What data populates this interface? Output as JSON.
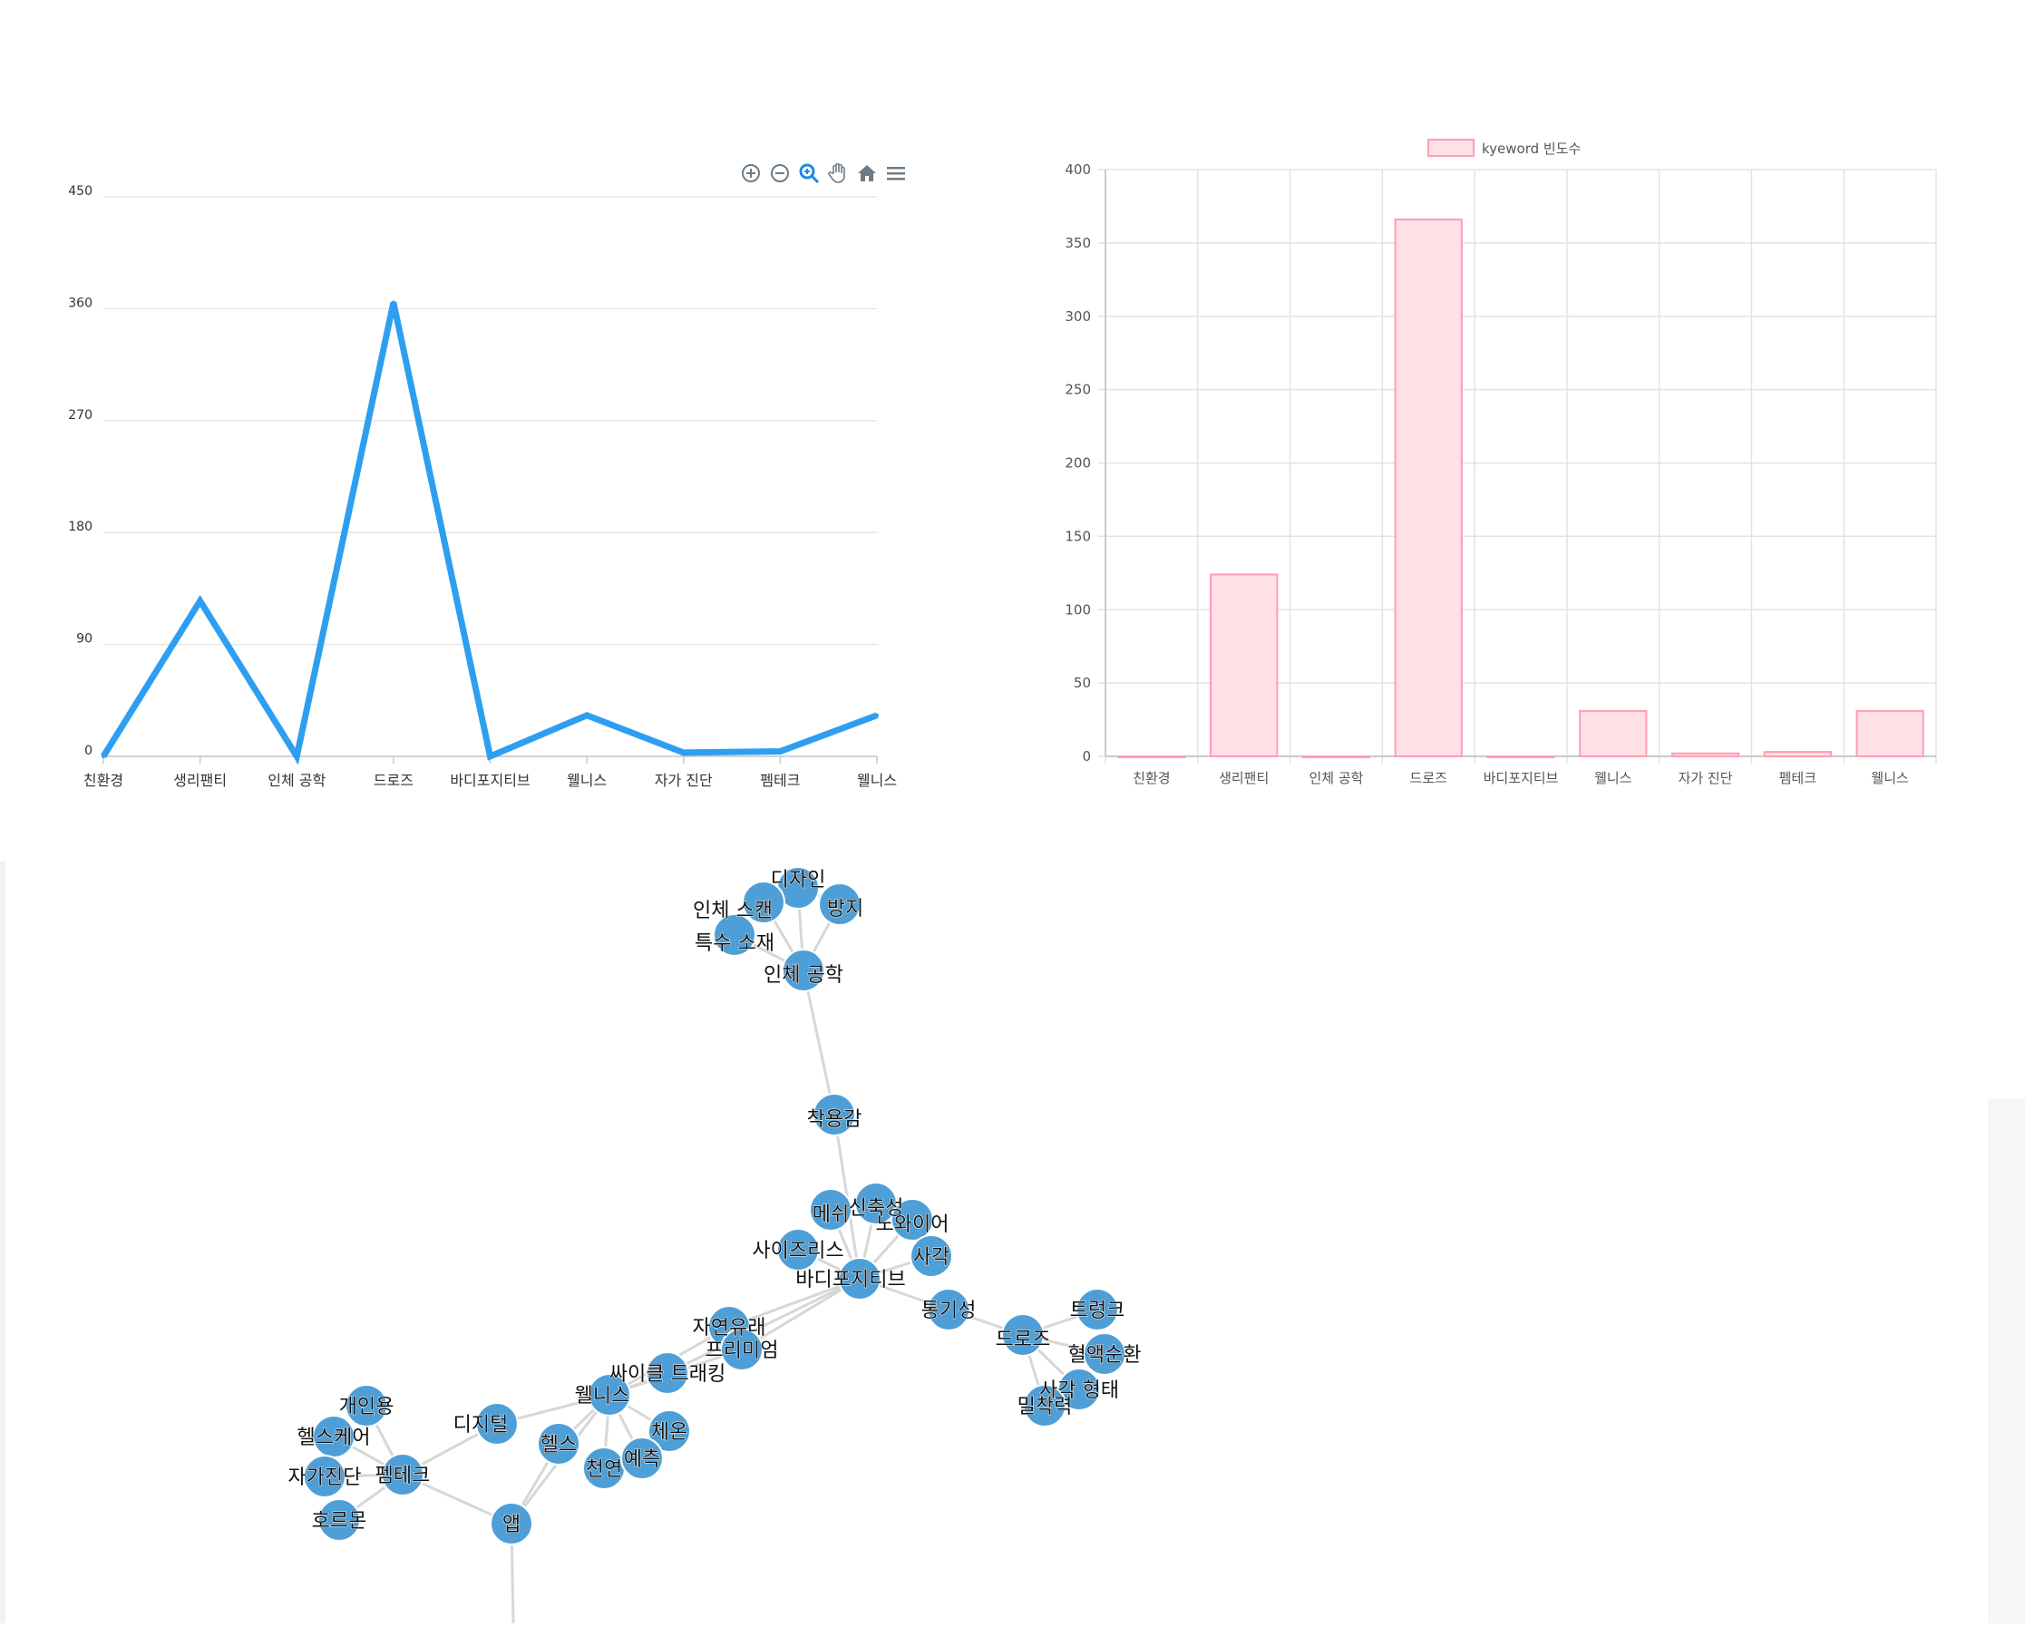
{
  "chart_data": [
    {
      "type": "line",
      "categories": [
        "친환경",
        "생리팬티",
        "인체 공학",
        "드로즈",
        "바디포지티브",
        "웰니스",
        "자가 진단",
        "펨테크",
        "웰니스"
      ],
      "series": [
        {
          "values": [
            0,
            125,
            0,
            365,
            0,
            33,
            3,
            4,
            33
          ]
        }
      ],
      "ylim": [
        0,
        450
      ],
      "yticks": [
        "0",
        "90",
        "180",
        "270",
        "360",
        "450"
      ],
      "grid": true,
      "color": "#2e9ff0",
      "toolbar": [
        "zoom-in-icon",
        "zoom-out-icon",
        "zoom-select-icon",
        "pan-hand-icon",
        "reset-home-icon",
        "menu-icon"
      ]
    },
    {
      "type": "bar",
      "categories": [
        "친환경",
        "생리팬티",
        "인체 공학",
        "드로즈",
        "바디포지티브",
        "웰니스",
        "자가 진단",
        "펨테크",
        "웰니스"
      ],
      "series": [
        {
          "name": "kyeword 빈도수",
          "values": [
            0,
            124,
            0,
            366,
            0,
            31,
            2,
            3,
            31
          ]
        }
      ],
      "ylim": [
        0,
        400
      ],
      "yticks": [
        "0",
        "50",
        "100",
        "150",
        "200",
        "250",
        "300",
        "350",
        "400"
      ],
      "grid": true,
      "legend": "top-center",
      "fill": "#ffe0e6",
      "stroke": "#ff9db3"
    }
  ],
  "network": {
    "node_color": "#4e9fd7",
    "edge_color": "#d7d7d7",
    "nodes": [
      {
        "id": "디자인",
        "label": "디자인"
      },
      {
        "id": "인체스캔",
        "label": "인체 스캔"
      },
      {
        "id": "방지",
        "label": "방지"
      },
      {
        "id": "특수소재",
        "label": "특수 소재"
      },
      {
        "id": "인체공학",
        "label": "인체 공학"
      },
      {
        "id": "착용감",
        "label": "착용감"
      },
      {
        "id": "메쉬",
        "label": "메쉬"
      },
      {
        "id": "신축성",
        "label": "신축성"
      },
      {
        "id": "노와이어",
        "label": "노와이어"
      },
      {
        "id": "사이즈리스",
        "label": "사이즈리스"
      },
      {
        "id": "사각",
        "label": "사각"
      },
      {
        "id": "바디포지티브",
        "label": "바디포지티브"
      },
      {
        "id": "통기성",
        "label": "통기성"
      },
      {
        "id": "자연유래",
        "label": "자연유래"
      },
      {
        "id": "프리미엄",
        "label": "프리미엄"
      },
      {
        "id": "드로즈",
        "label": "드로즈"
      },
      {
        "id": "트렁크",
        "label": "트렁크"
      },
      {
        "id": "혈액순환",
        "label": "혈액순환"
      },
      {
        "id": "사각형태",
        "label": "사각 형태"
      },
      {
        "id": "밀착력",
        "label": "밀착력"
      },
      {
        "id": "싸이클트래킹",
        "label": "싸이클 트래킹"
      },
      {
        "id": "웰니스",
        "label": "웰니스"
      },
      {
        "id": "디지털",
        "label": "디지털"
      },
      {
        "id": "헬스",
        "label": "헬스"
      },
      {
        "id": "체온",
        "label": "체온"
      },
      {
        "id": "천연",
        "label": "천연"
      },
      {
        "id": "예측",
        "label": "예측"
      },
      {
        "id": "개인용",
        "label": "개인용"
      },
      {
        "id": "헬스케어",
        "label": "헬스케어"
      },
      {
        "id": "자가진단",
        "label": "자가진단"
      },
      {
        "id": "펨테크",
        "label": "펨테크"
      },
      {
        "id": "호르몬",
        "label": "호르몬"
      },
      {
        "id": "앱",
        "label": "앱"
      }
    ],
    "edges": [
      [
        "디자인",
        "인체공학"
      ],
      [
        "인체스캔",
        "인체공학"
      ],
      [
        "방지",
        "인체공학"
      ],
      [
        "특수소재",
        "인체공학"
      ],
      [
        "디자인",
        "인체스캔"
      ],
      [
        "디자인",
        "방지"
      ],
      [
        "인체공학",
        "착용감"
      ],
      [
        "착용감",
        "바디포지티브"
      ],
      [
        "메쉬",
        "바디포지티브"
      ],
      [
        "신축성",
        "바디포지티브"
      ],
      [
        "노와이어",
        "바디포지티브"
      ],
      [
        "사이즈리스",
        "바디포지티브"
      ],
      [
        "사각",
        "바디포지티브"
      ],
      [
        "바디포지티브",
        "통기성"
      ],
      [
        "바디포지티브",
        "자연유래"
      ],
      [
        "바디포지티브",
        "프리미엄"
      ],
      [
        "바디포지티브",
        "싸이클트래킹"
      ],
      [
        "통기성",
        "드로즈"
      ],
      [
        "드로즈",
        "트렁크"
      ],
      [
        "드로즈",
        "혈액순환"
      ],
      [
        "드로즈",
        "사각형태"
      ],
      [
        "드로즈",
        "밀착력"
      ],
      [
        "프리미엄",
        "웰니스"
      ],
      [
        "싸이클트래킹",
        "웰니스"
      ],
      [
        "자연유래",
        "웰니스"
      ],
      [
        "웰니스",
        "디지털"
      ],
      [
        "웰니스",
        "헬스"
      ],
      [
        "웰니스",
        "체온"
      ],
      [
        "웰니스",
        "천연"
      ],
      [
        "웰니스",
        "예측"
      ],
      [
        "웰니스",
        "앱"
      ],
      [
        "디지털",
        "펨테크"
      ],
      [
        "펨테크",
        "개인용"
      ],
      [
        "펨테크",
        "헬스케어"
      ],
      [
        "펨테크",
        "자가진단"
      ],
      [
        "펨테크",
        "호르몬"
      ],
      [
        "펨테크",
        "앱"
      ],
      [
        "헬스",
        "앱"
      ],
      [
        "앱",
        "__bottom"
      ]
    ]
  }
}
